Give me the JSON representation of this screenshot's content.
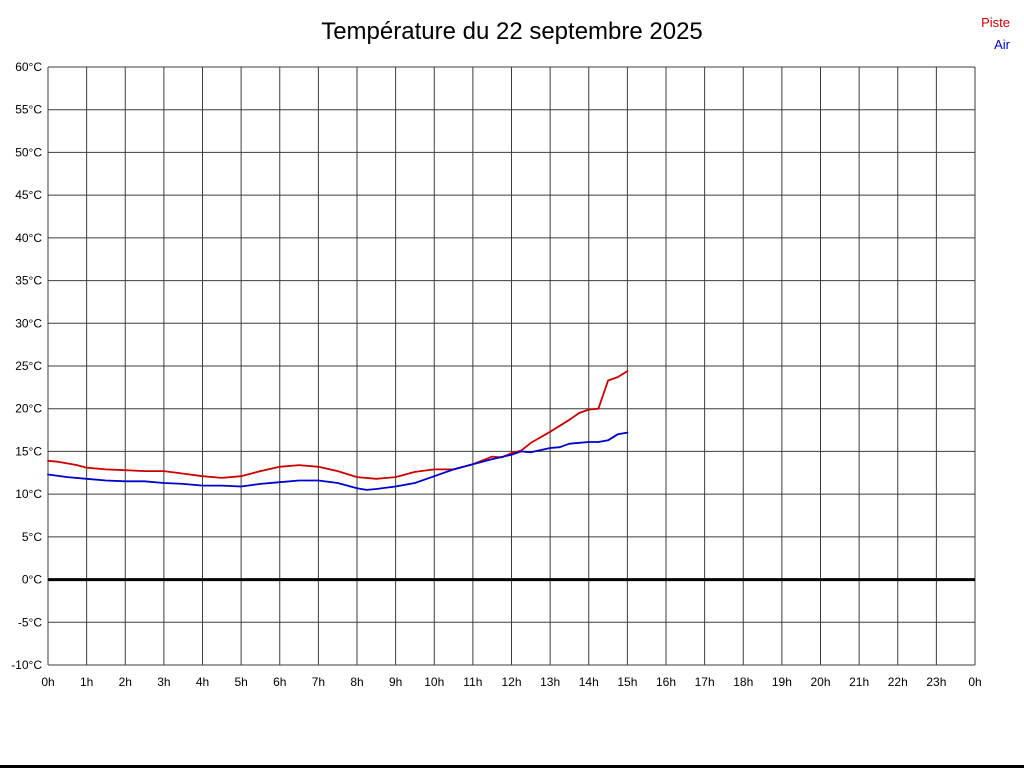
{
  "chart_data": {
    "type": "line",
    "title": "Température du 22 septembre 2025",
    "xlabel": "",
    "ylabel": "",
    "xlim": [
      0,
      24
    ],
    "ylim": [
      -10,
      60
    ],
    "grid": true,
    "zero_line_value": 0,
    "legend_position": "top-right",
    "x_ticks": [
      "0h",
      "1h",
      "2h",
      "3h",
      "4h",
      "5h",
      "6h",
      "7h",
      "8h",
      "9h",
      "10h",
      "11h",
      "12h",
      "13h",
      "14h",
      "15h",
      "16h",
      "17h",
      "18h",
      "19h",
      "20h",
      "21h",
      "22h",
      "23h",
      "0h"
    ],
    "y_ticks": [
      "60°C",
      "55°C",
      "50°C",
      "45°C",
      "40°C",
      "35°C",
      "30°C",
      "25°C",
      "20°C",
      "15°C",
      "10°C",
      "5°C",
      "0°C",
      "-5°C",
      "-10°C"
    ],
    "series": [
      {
        "name": "Piste",
        "color": "#cc0000",
        "points": [
          [
            0,
            13.9
          ],
          [
            0.25,
            13.8
          ],
          [
            0.5,
            13.6
          ],
          [
            0.75,
            13.4
          ],
          [
            1,
            13.1
          ],
          [
            1.5,
            12.9
          ],
          [
            2,
            12.8
          ],
          [
            2.5,
            12.7
          ],
          [
            3,
            12.7
          ],
          [
            3.5,
            12.4
          ],
          [
            4,
            12.1
          ],
          [
            4.5,
            11.9
          ],
          [
            5,
            12.1
          ],
          [
            5.5,
            12.7
          ],
          [
            6,
            13.2
          ],
          [
            6.5,
            13.4
          ],
          [
            7,
            13.2
          ],
          [
            7.5,
            12.7
          ],
          [
            8,
            12.0
          ],
          [
            8.5,
            11.8
          ],
          [
            9,
            12.0
          ],
          [
            9.5,
            12.6
          ],
          [
            10,
            12.9
          ],
          [
            10.5,
            12.9
          ],
          [
            11,
            13.5
          ],
          [
            11.5,
            14.4
          ],
          [
            11.75,
            14.3
          ],
          [
            12,
            14.8
          ],
          [
            12.25,
            15.1
          ],
          [
            12.5,
            16.0
          ],
          [
            13,
            17.3
          ],
          [
            13.5,
            18.7
          ],
          [
            13.75,
            19.5
          ],
          [
            14,
            19.9
          ],
          [
            14.25,
            20.0
          ],
          [
            14.5,
            23.3
          ],
          [
            14.75,
            23.7
          ],
          [
            15,
            24.4
          ]
        ]
      },
      {
        "name": "Air",
        "color": "#0000cc",
        "points": [
          [
            0,
            12.3
          ],
          [
            0.5,
            12.0
          ],
          [
            1,
            11.8
          ],
          [
            1.5,
            11.6
          ],
          [
            2,
            11.5
          ],
          [
            2.5,
            11.5
          ],
          [
            3,
            11.3
          ],
          [
            3.5,
            11.2
          ],
          [
            4,
            11.0
          ],
          [
            4.5,
            11.0
          ],
          [
            5,
            10.9
          ],
          [
            5.5,
            11.2
          ],
          [
            6,
            11.4
          ],
          [
            6.5,
            11.6
          ],
          [
            7,
            11.6
          ],
          [
            7.5,
            11.3
          ],
          [
            8,
            10.7
          ],
          [
            8.25,
            10.5
          ],
          [
            8.5,
            10.6
          ],
          [
            9,
            10.9
          ],
          [
            9.5,
            11.3
          ],
          [
            10,
            12.1
          ],
          [
            10.5,
            12.9
          ],
          [
            11,
            13.5
          ],
          [
            11.5,
            14.1
          ],
          [
            12,
            14.6
          ],
          [
            12.25,
            15.0
          ],
          [
            12.5,
            14.9
          ],
          [
            13,
            15.4
          ],
          [
            13.25,
            15.5
          ],
          [
            13.5,
            15.9
          ],
          [
            14,
            16.1
          ],
          [
            14.25,
            16.1
          ],
          [
            14.5,
            16.3
          ],
          [
            14.75,
            17.0
          ],
          [
            15,
            17.2
          ]
        ]
      }
    ]
  }
}
